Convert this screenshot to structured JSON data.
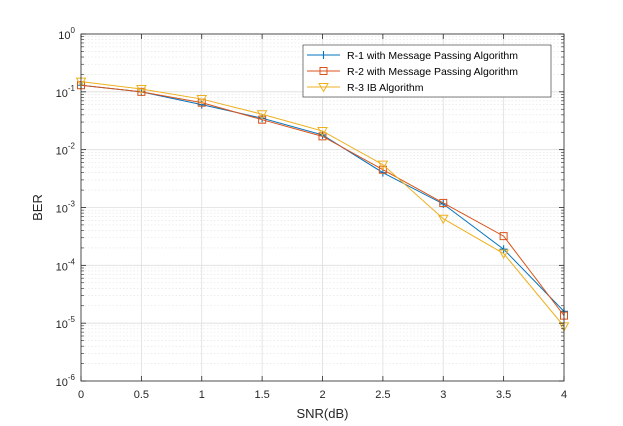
{
  "chart_data": {
    "type": "line",
    "xlabel": "SNR(dB)",
    "ylabel": "BER",
    "xlim": [
      0,
      4
    ],
    "ylim": [
      1e-06,
      1
    ],
    "yscale": "log",
    "grid": true,
    "minor_grid": true,
    "legend_position": "top-right",
    "x_ticks": [
      "0",
      "0.5",
      "1",
      "1.5",
      "2",
      "2.5",
      "3",
      "3.5",
      "4"
    ],
    "y_ticks": [
      {
        "base": "10",
        "exp": "-6"
      },
      {
        "base": "10",
        "exp": "-5"
      },
      {
        "base": "10",
        "exp": "-4"
      },
      {
        "base": "10",
        "exp": "-3"
      },
      {
        "base": "10",
        "exp": "-2"
      },
      {
        "base": "10",
        "exp": "-1"
      },
      {
        "base": "10",
        "exp": "0"
      }
    ],
    "x": [
      0,
      0.5,
      1,
      1.5,
      2,
      2.5,
      3,
      3.5,
      4
    ],
    "series": [
      {
        "name": "R-1 with Message Passing Algorithm",
        "color": "#0072BD",
        "marker": "plus",
        "values": [
          0.13,
          0.1,
          0.06,
          0.035,
          0.018,
          0.004,
          0.00115,
          0.00019,
          1.6e-05
        ]
      },
      {
        "name": "R-2 with Message Passing Algorithm",
        "color": "#D95319",
        "marker": "square",
        "values": [
          0.13,
          0.1,
          0.065,
          0.033,
          0.017,
          0.0045,
          0.0012,
          0.00032,
          1.35e-05
        ]
      },
      {
        "name": "R-3 IB Algorithm",
        "color": "#EDB120",
        "marker": "triangle-down",
        "values": [
          0.15,
          0.112,
          0.075,
          0.041,
          0.021,
          0.0055,
          0.00064,
          0.00016,
          8.8e-06
        ]
      }
    ]
  }
}
